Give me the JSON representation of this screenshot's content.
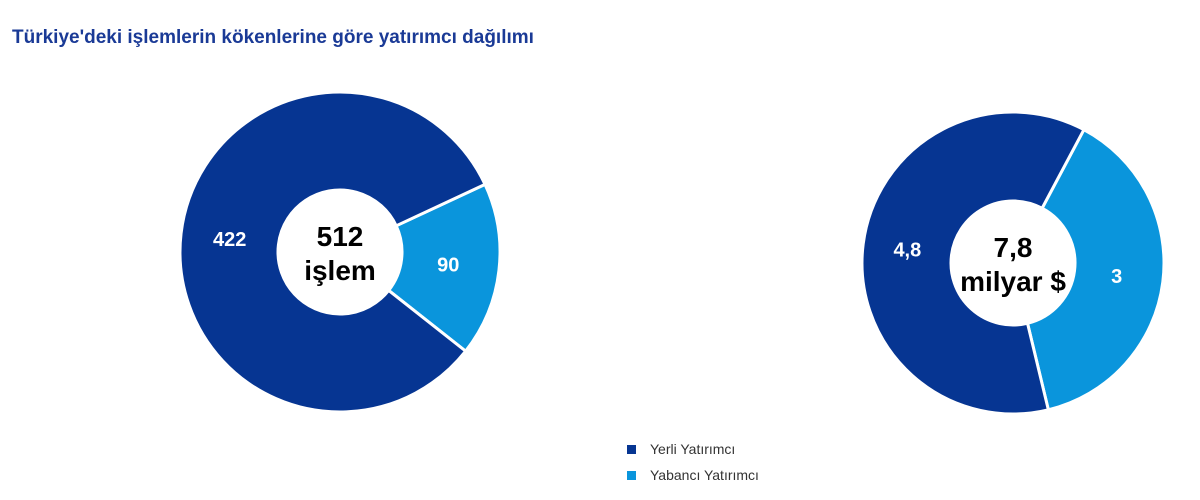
{
  "chart_data": [
    {
      "type": "pie",
      "donut": true,
      "categories": [
        "Yerli Yatırımcı",
        "Yabancı Yatırımcı"
      ],
      "values": [
        422,
        90
      ],
      "labels": [
        "422",
        "90"
      ],
      "center_label": [
        "512",
        "işlem"
      ]
    },
    {
      "type": "pie",
      "donut": true,
      "categories": [
        "Yerli Yatırımcı",
        "Yabancı Yatırımcı"
      ],
      "values": [
        4.8,
        3
      ],
      "labels": [
        "4,8",
        "3"
      ],
      "center_label": [
        "7,8",
        "milyar $"
      ]
    }
  ],
  "title": "Türkiye'deki işlemlerin kökenlerine göre yatırımcı dağılımı",
  "legend": {
    "placement": "bottom",
    "items": [
      {
        "label": "Yerli Yatırımcı",
        "color": "#063592"
      },
      {
        "label": "Yabancı Yatırımcı",
        "color": "#0a95dc"
      }
    ]
  },
  "colors": [
    "#063592",
    "#0a95dc"
  ]
}
